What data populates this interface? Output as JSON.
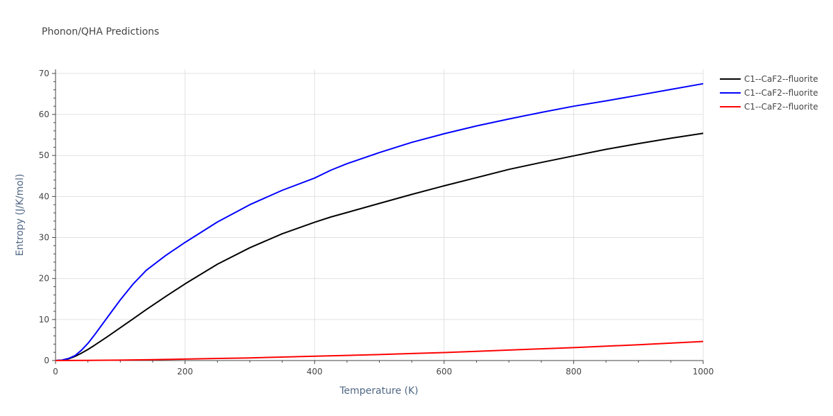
{
  "title": "Phonon/QHA Predictions",
  "chart_data": {
    "type": "line",
    "title": "Phonon/QHA Predictions",
    "xlabel": "Temperature (K)",
    "ylabel": "Entropy (J/K/mol)",
    "xlim": [
      0,
      1000
    ],
    "ylim": [
      0,
      71
    ],
    "xticks": [
      0,
      200,
      400,
      600,
      800,
      1000
    ],
    "yticks": [
      0,
      10,
      20,
      30,
      40,
      50,
      60,
      70
    ],
    "grid": true,
    "legend_position": "top-right",
    "series": [
      {
        "name": "C1--CaF2--fluorite",
        "color": "#000000",
        "x": [
          0,
          10,
          20,
          30,
          40,
          50,
          60,
          80,
          100,
          120,
          140,
          170,
          200,
          250,
          300,
          350,
          400,
          425,
          450,
          500,
          550,
          600,
          650,
          700,
          750,
          800,
          850,
          900,
          950,
          1000
        ],
        "y": [
          0,
          0.1,
          0.4,
          1.0,
          1.8,
          2.7,
          3.7,
          5.8,
          8.0,
          10.2,
          12.4,
          15.6,
          18.7,
          23.5,
          27.5,
          30.9,
          33.7,
          35.0,
          36.1,
          38.3,
          40.5,
          42.6,
          44.6,
          46.6,
          48.3,
          49.9,
          51.5,
          52.9,
          54.2,
          55.4
        ]
      },
      {
        "name": "C1--CaF2--fluorite",
        "color": "#0000ff",
        "x": [
          0,
          10,
          20,
          30,
          40,
          50,
          60,
          80,
          100,
          120,
          140,
          170,
          200,
          250,
          300,
          350,
          400,
          425,
          450,
          500,
          550,
          600,
          650,
          700,
          750,
          800,
          850,
          900,
          950,
          1000
        ],
        "y": [
          0,
          0.1,
          0.5,
          1.2,
          2.5,
          4.2,
          6.2,
          10.5,
          14.8,
          18.7,
          22.0,
          25.6,
          28.8,
          33.8,
          38.0,
          41.5,
          44.5,
          46.4,
          48.0,
          50.7,
          53.2,
          55.3,
          57.2,
          58.9,
          60.5,
          62.0,
          63.3,
          64.7,
          66.1,
          67.5
        ]
      },
      {
        "name": "C1--CaF2--fluorite",
        "color": "#ff0000",
        "x": [
          0,
          50,
          100,
          150,
          200,
          250,
          300,
          350,
          400,
          450,
          500,
          550,
          600,
          650,
          700,
          750,
          800,
          850,
          900,
          950,
          1000
        ],
        "y": [
          0,
          0.03,
          0.1,
          0.2,
          0.35,
          0.5,
          0.65,
          0.85,
          1.05,
          1.25,
          1.45,
          1.7,
          1.95,
          2.25,
          2.55,
          2.85,
          3.15,
          3.5,
          3.85,
          4.25,
          4.65
        ]
      }
    ]
  }
}
